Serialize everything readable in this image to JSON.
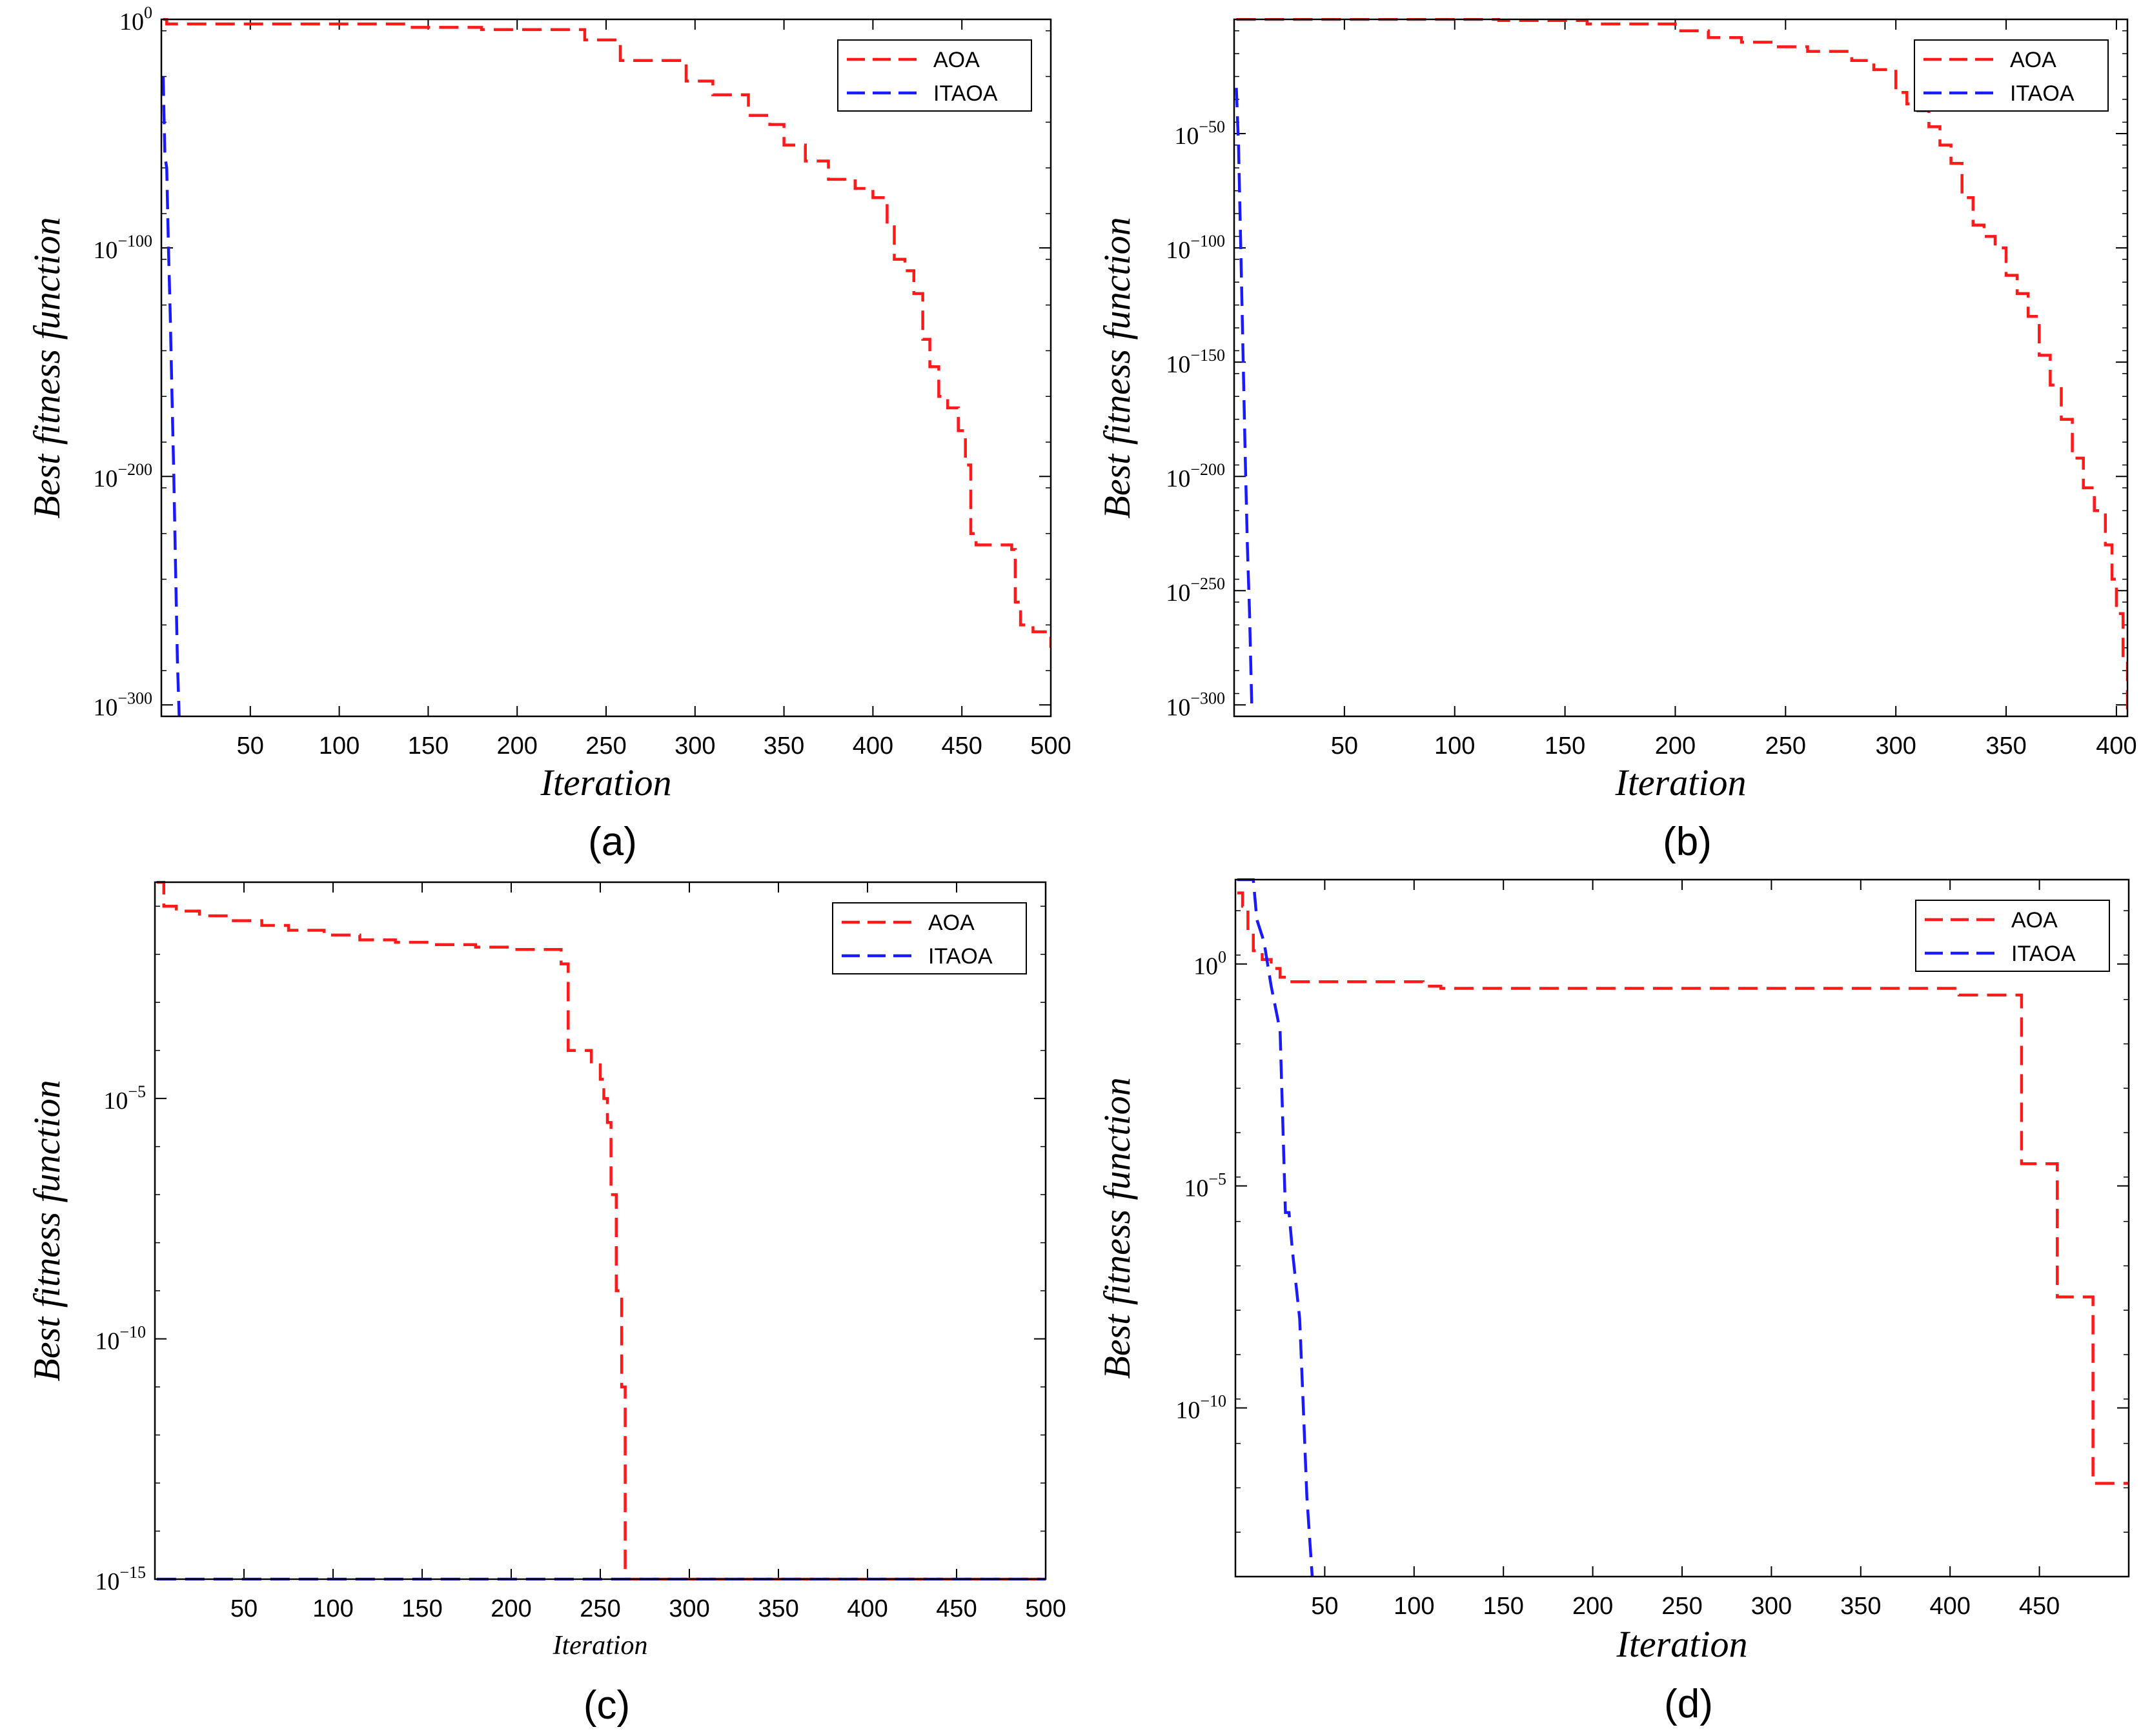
{
  "colors": {
    "aoa": "#ff1a1a",
    "itaoa": "#1a1aff",
    "axis": "#000000",
    "background": "#ffffff"
  },
  "chart_data": [
    {
      "id": "a",
      "type": "line",
      "caption": "(a)",
      "title": "",
      "xlabel": "Iteration",
      "ylabel": "Best fitness function",
      "yscale": "log",
      "xlim": [
        0,
        500
      ],
      "ylim_log10": [
        -305,
        0
      ],
      "xticks": [
        50,
        100,
        150,
        200,
        250,
        300,
        350,
        400,
        450,
        500
      ],
      "xtick_labels": [
        "50",
        "100",
        "150",
        "200",
        "250",
        "300",
        "350",
        "400",
        "450",
        "500"
      ],
      "yticks_log10": [
        0,
        -100,
        -200,
        -300
      ],
      "ytick_labels": [
        {
          "base": "10",
          "exp": "0"
        },
        {
          "base": "10",
          "exp": "−100"
        },
        {
          "base": "10",
          "exp": "−200"
        },
        {
          "base": "10",
          "exp": "−300"
        }
      ],
      "legend": {
        "location": "top-right",
        "entries": [
          "AOA",
          "ITAOA"
        ]
      },
      "series": [
        {
          "name": "AOA",
          "color": "aoa",
          "step": true,
          "x": [
            1,
            3,
            140,
            180,
            238,
            258,
            295,
            310,
            330,
            342,
            350,
            362,
            375,
            390,
            400,
            408,
            412,
            418,
            423,
            428,
            432,
            437,
            442,
            448,
            452,
            455,
            458,
            470,
            478,
            480,
            483,
            490,
            500
          ],
          "log10_y": [
            0,
            -2,
            -3.5,
            -4.5,
            -9,
            -18,
            -27,
            -33,
            -42,
            -46,
            -55,
            -62,
            -70,
            -74,
            -78,
            -90,
            -105,
            -110,
            -120,
            -140,
            -152,
            -165,
            -170,
            -180,
            -195,
            -225,
            -230,
            -230,
            -232,
            -255,
            -265,
            -268,
            -275
          ]
        },
        {
          "name": "ITAOA",
          "color": "itaoa",
          "step": false,
          "x": [
            1,
            2,
            3,
            4,
            5,
            6,
            7,
            8,
            9,
            10
          ],
          "log10_y": [
            -25,
            -60,
            -65,
            -100,
            -130,
            -165,
            -200,
            -240,
            -280,
            -305
          ]
        }
      ]
    },
    {
      "id": "b",
      "type": "line",
      "caption": "(b)",
      "title": "",
      "xlabel": "Iteration",
      "ylabel": "Best fitness function",
      "yscale": "log",
      "xlim": [
        0,
        405
      ],
      "ylim_log10": [
        -305,
        0
      ],
      "xticks": [
        50,
        100,
        150,
        200,
        250,
        300,
        350,
        400
      ],
      "xtick_labels": [
        "50",
        "100",
        "150",
        "200",
        "250",
        "300",
        "350",
        "400"
      ],
      "yticks_log10": [
        -50,
        -100,
        -150,
        -200,
        -250,
        -300
      ],
      "ytick_labels": [
        {
          "base": "10",
          "exp": "−50"
        },
        {
          "base": "10",
          "exp": "−100"
        },
        {
          "base": "10",
          "exp": "−150"
        },
        {
          "base": "10",
          "exp": "−200"
        },
        {
          "base": "10",
          "exp": "−250"
        },
        {
          "base": "10",
          "exp": "−300"
        }
      ],
      "legend": {
        "location": "top-right",
        "entries": [
          "AOA",
          "ITAOA"
        ]
      },
      "series": [
        {
          "name": "AOA",
          "color": "aoa",
          "step": true,
          "x": [
            1,
            120,
            160,
            200,
            215,
            230,
            245,
            260,
            280,
            290,
            300,
            305,
            310,
            315,
            320,
            325,
            330,
            335,
            340,
            345,
            350,
            355,
            360,
            365,
            370,
            375,
            380,
            385,
            390,
            395,
            398,
            400,
            403,
            405
          ],
          "log10_y": [
            0,
            -0.5,
            -2,
            -5,
            -8,
            -10,
            -12,
            -14,
            -18,
            -22,
            -32,
            -37,
            -40,
            -47,
            -55,
            -63,
            -78,
            -90,
            -95,
            -100,
            -112,
            -120,
            -130,
            -147,
            -160,
            -175,
            -192,
            -205,
            -215,
            -230,
            -245,
            -260,
            -280,
            -305
          ]
        },
        {
          "name": "ITAOA",
          "color": "itaoa",
          "step": false,
          "x": [
            1,
            2,
            3,
            4,
            5,
            6,
            7,
            8
          ],
          "log10_y": [
            -30,
            -55,
            -100,
            -145,
            -190,
            -230,
            -260,
            -300
          ]
        }
      ]
    },
    {
      "id": "c",
      "type": "line",
      "caption": "(c)",
      "title": "",
      "xlabel": "Iteration",
      "ylabel": "Best fitness function",
      "yscale": "log",
      "xlim": [
        0,
        500
      ],
      "ylim_log10": [
        -15,
        -0.5
      ],
      "xticks": [
        50,
        100,
        150,
        200,
        250,
        300,
        350,
        400,
        450,
        500
      ],
      "xtick_labels": [
        "50",
        "100",
        "150",
        "200",
        "250",
        "300",
        "350",
        "400",
        "450",
        "500"
      ],
      "yticks_log10": [
        -5,
        -10,
        -15
      ],
      "ytick_labels": [
        {
          "base": "10",
          "exp": "−5"
        },
        {
          "base": "10",
          "exp": "−10"
        },
        {
          "base": "10",
          "exp": "−15"
        }
      ],
      "legend": {
        "location": "top-right",
        "entries": [
          "AOA",
          "ITAOA"
        ]
      },
      "series": [
        {
          "name": "AOA",
          "color": "aoa",
          "step": true,
          "x": [
            1,
            5,
            12,
            25,
            40,
            60,
            75,
            95,
            115,
            135,
            155,
            180,
            200,
            228,
            232,
            245,
            250,
            252,
            254,
            256,
            259,
            262,
            264,
            500
          ],
          "log10_y": [
            -0.5,
            -1.0,
            -1.1,
            -1.2,
            -1.3,
            -1.4,
            -1.5,
            -1.6,
            -1.7,
            -1.75,
            -1.8,
            -1.85,
            -1.9,
            -2.2,
            -4.0,
            -4.3,
            -4.6,
            -5.0,
            -5.5,
            -7.0,
            -9.0,
            -11.0,
            -15.0,
            -15.0
          ]
        },
        {
          "name": "ITAOA",
          "color": "itaoa",
          "step": false,
          "x": [
            1,
            500
          ],
          "log10_y": [
            -15,
            -15
          ]
        }
      ]
    },
    {
      "id": "d",
      "type": "line",
      "caption": "(d)",
      "title": "",
      "xlabel": "Iteration",
      "ylabel": "Best fitness function",
      "yscale": "log",
      "xlim": [
        0,
        500
      ],
      "ylim_log10": [
        -13.8,
        1.9
      ],
      "xticks": [
        50,
        100,
        150,
        200,
        250,
        300,
        350,
        400,
        450
      ],
      "xtick_labels": [
        "50",
        "100",
        "150",
        "200",
        "250",
        "300",
        "350",
        "400",
        "450"
      ],
      "yticks_log10": [
        0,
        -5,
        -10
      ],
      "ytick_labels": [
        {
          "base": "10",
          "exp": "0"
        },
        {
          "base": "10",
          "exp": "−5"
        },
        {
          "base": "10",
          "exp": "−10"
        }
      ],
      "legend": {
        "location": "top-right",
        "entries": [
          "AOA",
          "ITAOA"
        ]
      },
      "series": [
        {
          "name": "AOA",
          "color": "aoa",
          "step": true,
          "x": [
            1,
            4,
            7,
            10,
            15,
            20,
            25,
            30,
            105,
            115,
            405,
            440,
            442,
            460,
            462,
            480,
            482,
            500
          ],
          "log10_y": [
            1.6,
            1.3,
            0.8,
            0.3,
            0.1,
            -0.1,
            -0.3,
            -0.4,
            -0.5,
            -0.55,
            -0.7,
            -4.5,
            -4.5,
            -7.5,
            -7.5,
            -11.7,
            -11.7,
            -11.7
          ]
        },
        {
          "name": "ITAOA",
          "color": "itaoa",
          "step": false,
          "x": [
            1,
            10,
            12,
            16,
            20,
            25,
            28,
            30,
            32,
            36,
            38,
            40,
            43
          ],
          "log10_y": [
            1.9,
            1.9,
            1.0,
            0.5,
            -0.5,
            -1.5,
            -5.6,
            -5.6,
            -6.5,
            -8.0,
            -10.0,
            -12.0,
            -13.8
          ]
        }
      ]
    }
  ]
}
